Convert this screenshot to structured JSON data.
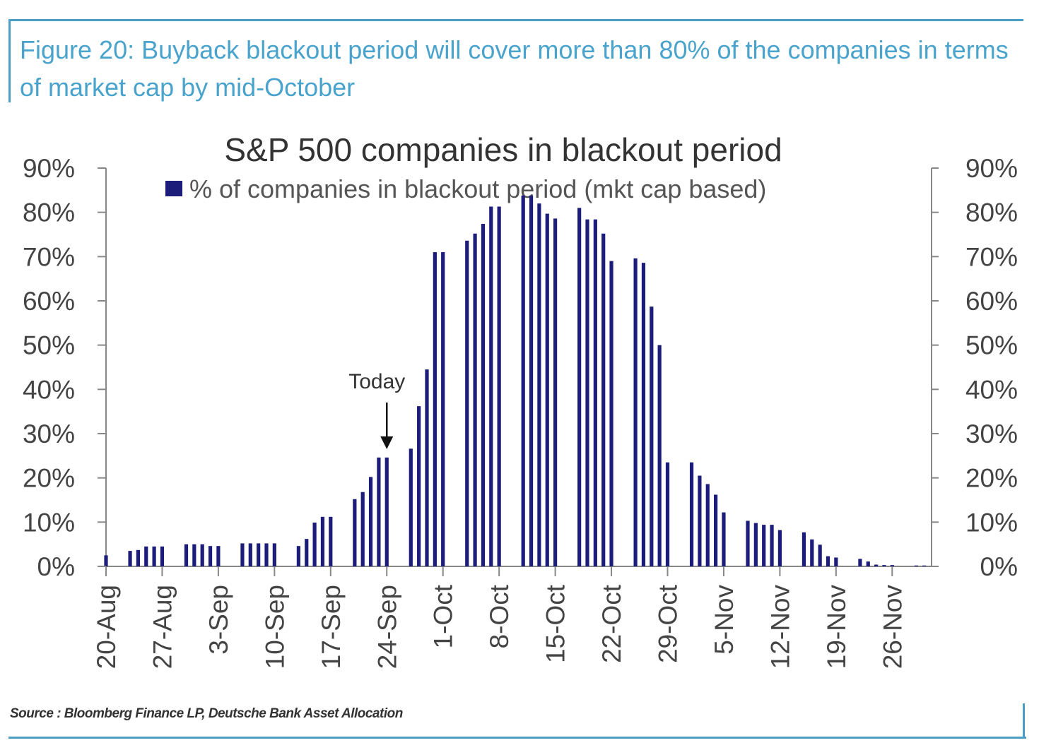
{
  "caption": "Figure 20: Buyback blackout period will cover more than 80% of the companies in terms of market cap by mid-October",
  "source": "Source : Bloomberg Finance LP, Deutsche Bank Asset Allocation",
  "colors": {
    "bar": "#1c1c7a",
    "frame": "#4a9ec4",
    "caption": "#4aa3cc",
    "axis": "#888888"
  },
  "chart_data": {
    "type": "bar",
    "title": "S&P 500 companies in blackout period",
    "legend": "% of companies in blackout period (mkt cap based)",
    "legend_position": "top",
    "ylim": [
      0,
      90
    ],
    "y_ticks": [
      "0%",
      "10%",
      "20%",
      "30%",
      "40%",
      "50%",
      "60%",
      "70%",
      "80%",
      "90%"
    ],
    "secondary_y_ticks": [
      "0%",
      "10%",
      "20%",
      "30%",
      "40%",
      "50%",
      "60%",
      "70%",
      "80%",
      "90%"
    ],
    "x_tick_labels": [
      "20-Aug",
      "27-Aug",
      "3-Sep",
      "10-Sep",
      "17-Sep",
      "24-Sep",
      "1-Oct",
      "8-Oct",
      "15-Oct",
      "22-Oct",
      "29-Oct",
      "5-Nov",
      "12-Nov",
      "19-Nov",
      "26-Nov"
    ],
    "x_start": "20-Aug",
    "series": [
      {
        "name": "% of companies in blackout period (mkt cap based)",
        "points": [
          {
            "x": "20-Aug",
            "y": 2.5
          },
          {
            "x": "23-Aug",
            "y": 3.5
          },
          {
            "x": "24-Aug",
            "y": 3.7
          },
          {
            "x": "25-Aug",
            "y": 4.5
          },
          {
            "x": "26-Aug",
            "y": 4.5
          },
          {
            "x": "27-Aug",
            "y": 4.5
          },
          {
            "x": "30-Aug",
            "y": 5.0
          },
          {
            "x": "31-Aug",
            "y": 5.0
          },
          {
            "x": "1-Sep",
            "y": 5.0
          },
          {
            "x": "2-Sep",
            "y": 4.6
          },
          {
            "x": "3-Sep",
            "y": 4.6
          },
          {
            "x": "6-Sep",
            "y": 5.2
          },
          {
            "x": "7-Sep",
            "y": 5.2
          },
          {
            "x": "8-Sep",
            "y": 5.2
          },
          {
            "x": "9-Sep",
            "y": 5.2
          },
          {
            "x": "10-Sep",
            "y": 5.2
          },
          {
            "x": "13-Sep",
            "y": 4.6
          },
          {
            "x": "14-Sep",
            "y": 6.2
          },
          {
            "x": "15-Sep",
            "y": 9.9
          },
          {
            "x": "16-Sep",
            "y": 11.2
          },
          {
            "x": "17-Sep",
            "y": 11.2
          },
          {
            "x": "20-Sep",
            "y": 15.2
          },
          {
            "x": "21-Sep",
            "y": 16.8
          },
          {
            "x": "22-Sep",
            "y": 20.2
          },
          {
            "x": "23-Sep",
            "y": 24.6
          },
          {
            "x": "24-Sep",
            "y": 24.6
          },
          {
            "x": "27-Sep",
            "y": 26.6
          },
          {
            "x": "28-Sep",
            "y": 36.2
          },
          {
            "x": "29-Sep",
            "y": 44.5
          },
          {
            "x": "30-Sep",
            "y": 71.0
          },
          {
            "x": "1-Oct",
            "y": 71.0
          },
          {
            "x": "4-Oct",
            "y": 73.6
          },
          {
            "x": "5-Oct",
            "y": 75.2
          },
          {
            "x": "6-Oct",
            "y": 77.4
          },
          {
            "x": "7-Oct",
            "y": 81.3
          },
          {
            "x": "8-Oct",
            "y": 81.3
          },
          {
            "x": "11-Oct",
            "y": 83.8
          },
          {
            "x": "12-Oct",
            "y": 83.8
          },
          {
            "x": "13-Oct",
            "y": 82.0
          },
          {
            "x": "14-Oct",
            "y": 79.7
          },
          {
            "x": "15-Oct",
            "y": 78.6
          },
          {
            "x": "18-Oct",
            "y": 81.0
          },
          {
            "x": "19-Oct",
            "y": 78.4
          },
          {
            "x": "20-Oct",
            "y": 78.4
          },
          {
            "x": "21-Oct",
            "y": 75.2
          },
          {
            "x": "22-Oct",
            "y": 69.0
          },
          {
            "x": "25-Oct",
            "y": 69.6
          },
          {
            "x": "26-Oct",
            "y": 68.6
          },
          {
            "x": "27-Oct",
            "y": 58.7
          },
          {
            "x": "28-Oct",
            "y": 50.0
          },
          {
            "x": "29-Oct",
            "y": 23.5
          },
          {
            "x": "1-Nov",
            "y": 23.5
          },
          {
            "x": "2-Nov",
            "y": 20.5
          },
          {
            "x": "3-Nov",
            "y": 18.6
          },
          {
            "x": "4-Nov",
            "y": 16.2
          },
          {
            "x": "5-Nov",
            "y": 12.2
          },
          {
            "x": "8-Nov",
            "y": 10.3
          },
          {
            "x": "9-Nov",
            "y": 9.8
          },
          {
            "x": "10-Nov",
            "y": 9.4
          },
          {
            "x": "11-Nov",
            "y": 9.4
          },
          {
            "x": "12-Nov",
            "y": 8.2
          },
          {
            "x": "15-Nov",
            "y": 7.7
          },
          {
            "x": "16-Nov",
            "y": 6.1
          },
          {
            "x": "17-Nov",
            "y": 4.9
          },
          {
            "x": "18-Nov",
            "y": 2.3
          },
          {
            "x": "19-Nov",
            "y": 2.0
          },
          {
            "x": "22-Nov",
            "y": 1.7
          },
          {
            "x": "23-Nov",
            "y": 1.1
          },
          {
            "x": "24-Nov",
            "y": 0.4
          },
          {
            "x": "25-Nov",
            "y": 0.3
          },
          {
            "x": "26-Nov",
            "y": 0.3
          },
          {
            "x": "29-Nov",
            "y": 0.2
          },
          {
            "x": "30-Nov",
            "y": 0.2
          }
        ]
      }
    ],
    "annotation": {
      "text": "Today",
      "x": "24-Sep"
    },
    "grid": false
  }
}
